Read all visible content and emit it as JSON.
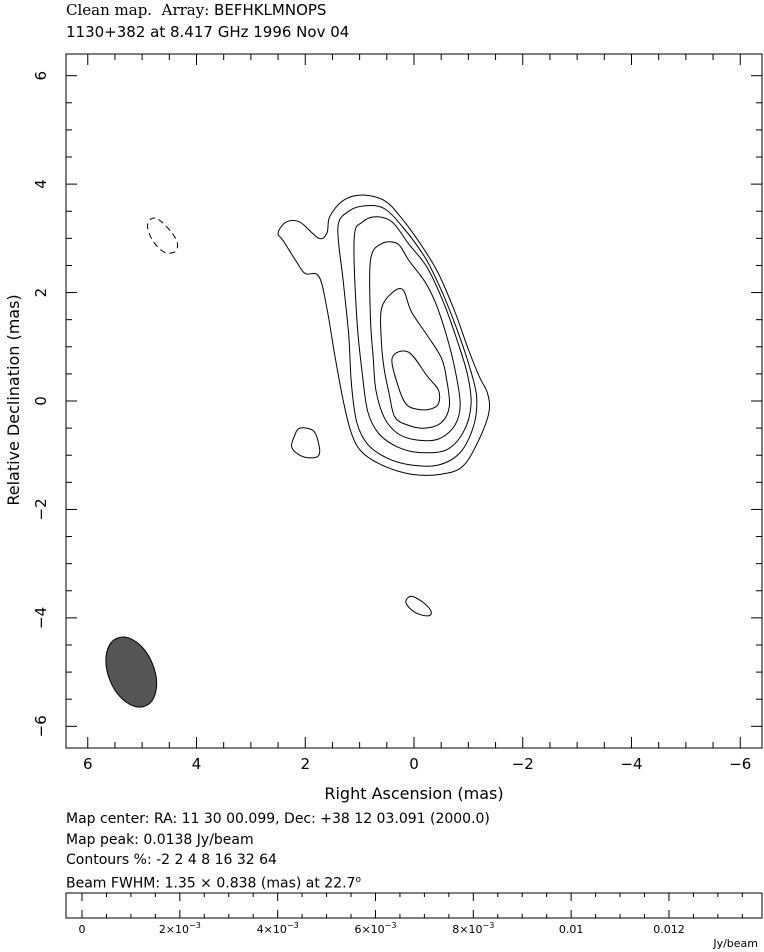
{
  "header": {
    "title_prefix": "Clean map.",
    "array_label": "Array:",
    "array_value": "BEFHKLMNOPS",
    "subtitle": "1130+382 at 8.417 GHz 1996 Nov 04"
  },
  "chart_data": {
    "type": "contour",
    "xlabel": "Right Ascension  (mas)",
    "ylabel": "Relative Declination  (mas)",
    "xlim": [
      6.4,
      -6.4
    ],
    "ylim": [
      -6.4,
      6.4
    ],
    "x_ticks": [
      6,
      4,
      2,
      0,
      -2,
      -4,
      -6
    ],
    "x_tick_labels": [
      "6",
      "4",
      "2",
      "0",
      "−2",
      "−4",
      "−6"
    ],
    "y_ticks": [
      6,
      4,
      2,
      0,
      -2,
      -4,
      -6
    ],
    "y_tick_labels": [
      "6",
      "4",
      "2",
      "0",
      "−2",
      "−4",
      "−6"
    ],
    "grid": false,
    "map_peak_jy_per_beam": 0.0138,
    "contour_levels_percent": [
      -2,
      2,
      4,
      8,
      16,
      32,
      64
    ],
    "beam": {
      "major_mas": 1.35,
      "minor_mas": 0.838,
      "pa_deg": 22.7,
      "center": [
        5.2,
        -5.0
      ],
      "color": "#555555"
    },
    "contours": [
      {
        "level": 64,
        "points": [
          [
            0.4,
            0.8
          ],
          [
            0.1,
            0.9
          ],
          [
            -0.25,
            0.45
          ],
          [
            -0.45,
            0.2
          ],
          [
            -0.45,
            -0.05
          ],
          [
            -0.3,
            -0.15
          ],
          [
            -0.05,
            -0.15
          ],
          [
            0.15,
            -0.05
          ],
          [
            0.3,
            0.3
          ]
        ]
      },
      {
        "level": 32,
        "points": [
          [
            0.6,
            1.7
          ],
          [
            0.4,
            2.0
          ],
          [
            0.2,
            2.05
          ],
          [
            0.05,
            1.65
          ],
          [
            -0.25,
            1.2
          ],
          [
            -0.5,
            0.8
          ],
          [
            -0.6,
            0.4
          ],
          [
            -0.65,
            -0.1
          ],
          [
            -0.5,
            -0.4
          ],
          [
            -0.2,
            -0.5
          ],
          [
            0.1,
            -0.45
          ],
          [
            0.35,
            -0.3
          ],
          [
            0.45,
            0.1
          ],
          [
            0.55,
            0.6
          ],
          [
            0.6,
            1.1
          ]
        ]
      },
      {
        "level": 16,
        "points": [
          [
            0.8,
            2.6
          ],
          [
            0.6,
            2.9
          ],
          [
            0.3,
            2.9
          ],
          [
            0.1,
            2.6
          ],
          [
            -0.2,
            2.2
          ],
          [
            -0.4,
            1.8
          ],
          [
            -0.6,
            1.2
          ],
          [
            -0.75,
            0.6
          ],
          [
            -0.85,
            -0.05
          ],
          [
            -0.75,
            -0.45
          ],
          [
            -0.45,
            -0.7
          ],
          [
            -0.05,
            -0.72
          ],
          [
            0.3,
            -0.6
          ],
          [
            0.55,
            -0.3
          ],
          [
            0.7,
            0.2
          ],
          [
            0.75,
            0.8
          ],
          [
            0.8,
            1.5
          ]
        ]
      },
      {
        "level": 8,
        "points": [
          [
            1.1,
            3.0
          ],
          [
            0.95,
            3.3
          ],
          [
            0.7,
            3.4
          ],
          [
            0.4,
            3.3
          ],
          [
            0.1,
            2.9
          ],
          [
            -0.25,
            2.45
          ],
          [
            -0.55,
            1.8
          ],
          [
            -0.8,
            1.1
          ],
          [
            -0.98,
            0.5
          ],
          [
            -1.05,
            -0.05
          ],
          [
            -0.92,
            -0.55
          ],
          [
            -0.6,
            -0.9
          ],
          [
            -0.1,
            -0.95
          ],
          [
            0.3,
            -0.85
          ],
          [
            0.65,
            -0.6
          ],
          [
            0.85,
            -0.2
          ],
          [
            0.95,
            0.5
          ],
          [
            1.05,
            1.5
          ]
        ]
      },
      {
        "level": 4,
        "points": [
          [
            1.4,
            3.2
          ],
          [
            1.2,
            3.5
          ],
          [
            0.9,
            3.6
          ],
          [
            0.55,
            3.55
          ],
          [
            0.2,
            3.2
          ],
          [
            -0.2,
            2.65
          ],
          [
            -0.5,
            2.05
          ],
          [
            -0.78,
            1.35
          ],
          [
            -1.0,
            0.7
          ],
          [
            -1.15,
            0.1
          ],
          [
            -1.1,
            -0.45
          ],
          [
            -0.85,
            -0.95
          ],
          [
            -0.45,
            -1.18
          ],
          [
            0.05,
            -1.18
          ],
          [
            0.5,
            -1.05
          ],
          [
            0.85,
            -0.8
          ],
          [
            1.05,
            -0.4
          ],
          [
            1.15,
            0.3
          ],
          [
            1.2,
            1.2
          ],
          [
            1.3,
            2.2
          ]
        ]
      },
      {
        "level": 2,
        "points": [
          [
            1.6,
            3.1
          ],
          [
            1.55,
            3.4
          ],
          [
            1.3,
            3.7
          ],
          [
            0.95,
            3.8
          ],
          [
            0.55,
            3.7
          ],
          [
            0.25,
            3.4
          ],
          [
            -0.15,
            2.85
          ],
          [
            -0.45,
            2.35
          ],
          [
            -0.75,
            1.65
          ],
          [
            -1.0,
            0.95
          ],
          [
            -1.2,
            0.45
          ],
          [
            -1.35,
            0.15
          ],
          [
            -1.38,
            -0.2
          ],
          [
            -1.2,
            -0.7
          ],
          [
            -0.9,
            -1.2
          ],
          [
            -0.5,
            -1.35
          ],
          [
            0.05,
            -1.35
          ],
          [
            0.55,
            -1.2
          ],
          [
            0.95,
            -0.95
          ],
          [
            1.15,
            -0.6
          ],
          [
            1.3,
            0.0
          ],
          [
            1.45,
            0.8
          ],
          [
            1.6,
            1.7
          ],
          [
            1.75,
            2.3
          ],
          [
            2.0,
            2.35
          ],
          [
            2.15,
            2.55
          ],
          [
            2.4,
            2.95
          ],
          [
            2.5,
            3.1
          ],
          [
            2.35,
            3.3
          ],
          [
            2.1,
            3.3
          ],
          [
            1.75,
            3.0
          ]
        ]
      },
      {
        "level": 2,
        "points": [
          [
            2.2,
            -0.65
          ],
          [
            2.1,
            -0.5
          ],
          [
            1.85,
            -0.55
          ],
          [
            1.75,
            -0.8
          ],
          [
            1.75,
            -1.0
          ],
          [
            1.9,
            -1.05
          ],
          [
            2.1,
            -1.0
          ],
          [
            2.25,
            -0.85
          ]
        ]
      },
      {
        "level": 2,
        "points": [
          [
            0.05,
            -3.6
          ],
          [
            -0.15,
            -3.7
          ],
          [
            -0.3,
            -3.85
          ],
          [
            -0.3,
            -3.95
          ],
          [
            -0.15,
            -3.95
          ],
          [
            0.05,
            -3.85
          ],
          [
            0.15,
            -3.7
          ]
        ]
      },
      {
        "level": -2,
        "points": [
          [
            4.7,
            3.35
          ],
          [
            4.45,
            3.1
          ],
          [
            4.35,
            2.9
          ],
          [
            4.4,
            2.75
          ],
          [
            4.6,
            2.75
          ],
          [
            4.8,
            2.95
          ],
          [
            4.9,
            3.2
          ],
          [
            4.85,
            3.35
          ]
        ]
      }
    ]
  },
  "info": {
    "map_center": "Map center:  RA: 11 30 00.099,  Dec: +38 12 03.091 (2000.0)",
    "map_peak": "Map peak: 0.0138 Jy/beam",
    "contours": "Contours %: -2 2 4 8 16 32 64",
    "beam_prefix": "Beam FWHM: 1.35 × 0.838 (mas) at 22.7",
    "beam_degree": "o"
  },
  "colorbar": {
    "min": 0,
    "max": 0.0138,
    "tick_values": [
      0,
      0.002,
      0.004,
      0.006,
      0.008,
      0.01,
      0.012
    ],
    "tick_labels": [
      {
        "base": "0",
        "exp": ""
      },
      {
        "base": "2×10",
        "exp": "−3"
      },
      {
        "base": "4×10",
        "exp": "−3"
      },
      {
        "base": "6×10",
        "exp": "−3"
      },
      {
        "base": "8×10",
        "exp": "−3"
      },
      {
        "base": "0.01",
        "exp": ""
      },
      {
        "base": "0.012",
        "exp": ""
      }
    ],
    "unit": "Jy/beam"
  }
}
